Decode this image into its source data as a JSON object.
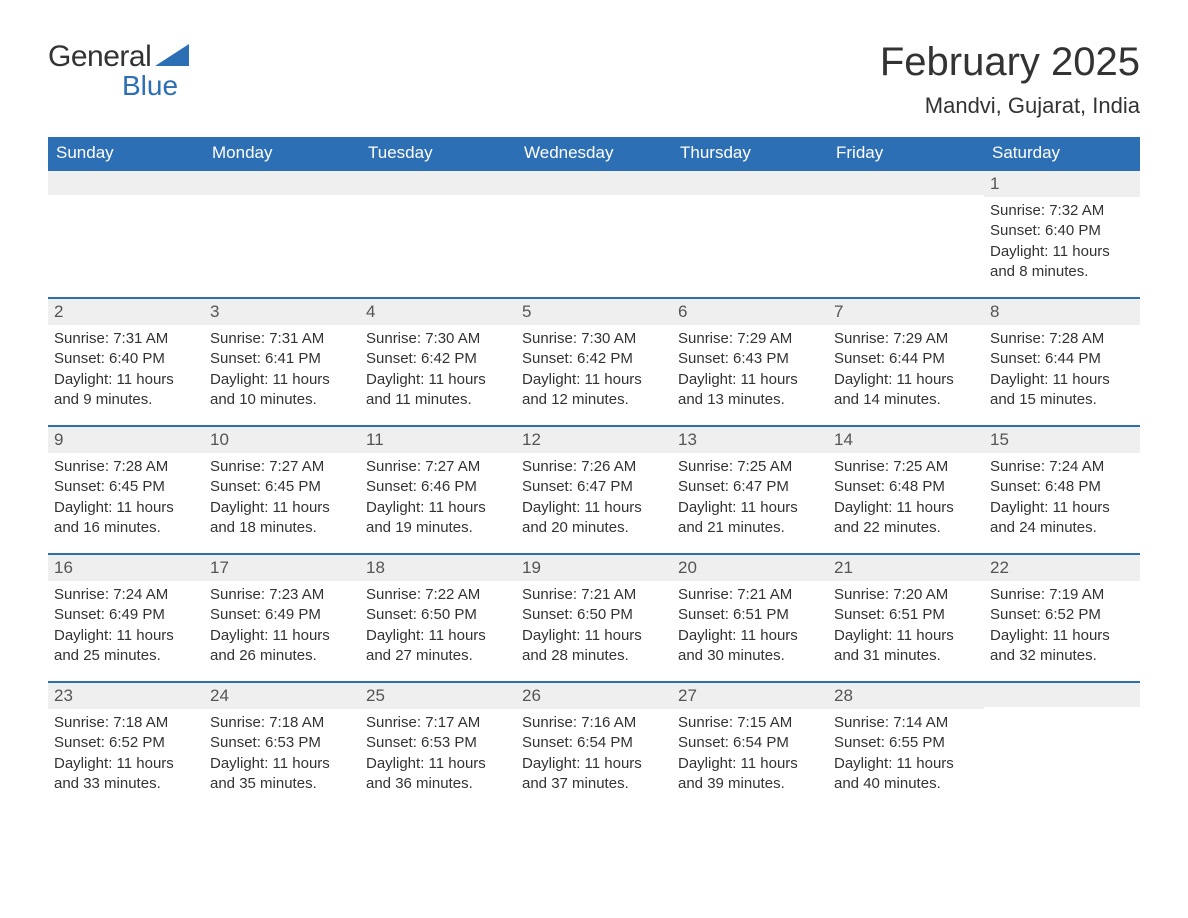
{
  "logo": {
    "text1": "General",
    "text2": "Blue",
    "icon_color": "#2d6fb5"
  },
  "title": "February 2025",
  "location": "Mandvi, Gujarat, India",
  "colors": {
    "header_bg": "#2d6fb5",
    "header_text": "#ffffff",
    "daynum_bg": "#efefef",
    "daynum_border": "#2d6fb5",
    "text": "#333333",
    "background": "#ffffff"
  },
  "fonts": {
    "title_size": 40,
    "location_size": 22,
    "dow_size": 17,
    "daynum_size": 17,
    "body_size": 15
  },
  "days_of_week": [
    "Sunday",
    "Monday",
    "Tuesday",
    "Wednesday",
    "Thursday",
    "Friday",
    "Saturday"
  ],
  "labels": {
    "sunrise": "Sunrise: ",
    "sunset": "Sunset: ",
    "daylight": "Daylight: "
  },
  "weeks": [
    [
      null,
      null,
      null,
      null,
      null,
      null,
      {
        "n": "1",
        "sr": "7:32 AM",
        "ss": "6:40 PM",
        "dl": "11 hours and 8 minutes."
      }
    ],
    [
      {
        "n": "2",
        "sr": "7:31 AM",
        "ss": "6:40 PM",
        "dl": "11 hours and 9 minutes."
      },
      {
        "n": "3",
        "sr": "7:31 AM",
        "ss": "6:41 PM",
        "dl": "11 hours and 10 minutes."
      },
      {
        "n": "4",
        "sr": "7:30 AM",
        "ss": "6:42 PM",
        "dl": "11 hours and 11 minutes."
      },
      {
        "n": "5",
        "sr": "7:30 AM",
        "ss": "6:42 PM",
        "dl": "11 hours and 12 minutes."
      },
      {
        "n": "6",
        "sr": "7:29 AM",
        "ss": "6:43 PM",
        "dl": "11 hours and 13 minutes."
      },
      {
        "n": "7",
        "sr": "7:29 AM",
        "ss": "6:44 PM",
        "dl": "11 hours and 14 minutes."
      },
      {
        "n": "8",
        "sr": "7:28 AM",
        "ss": "6:44 PM",
        "dl": "11 hours and 15 minutes."
      }
    ],
    [
      {
        "n": "9",
        "sr": "7:28 AM",
        "ss": "6:45 PM",
        "dl": "11 hours and 16 minutes."
      },
      {
        "n": "10",
        "sr": "7:27 AM",
        "ss": "6:45 PM",
        "dl": "11 hours and 18 minutes."
      },
      {
        "n": "11",
        "sr": "7:27 AM",
        "ss": "6:46 PM",
        "dl": "11 hours and 19 minutes."
      },
      {
        "n": "12",
        "sr": "7:26 AM",
        "ss": "6:47 PM",
        "dl": "11 hours and 20 minutes."
      },
      {
        "n": "13",
        "sr": "7:25 AM",
        "ss": "6:47 PM",
        "dl": "11 hours and 21 minutes."
      },
      {
        "n": "14",
        "sr": "7:25 AM",
        "ss": "6:48 PM",
        "dl": "11 hours and 22 minutes."
      },
      {
        "n": "15",
        "sr": "7:24 AM",
        "ss": "6:48 PM",
        "dl": "11 hours and 24 minutes."
      }
    ],
    [
      {
        "n": "16",
        "sr": "7:24 AM",
        "ss": "6:49 PM",
        "dl": "11 hours and 25 minutes."
      },
      {
        "n": "17",
        "sr": "7:23 AM",
        "ss": "6:49 PM",
        "dl": "11 hours and 26 minutes."
      },
      {
        "n": "18",
        "sr": "7:22 AM",
        "ss": "6:50 PM",
        "dl": "11 hours and 27 minutes."
      },
      {
        "n": "19",
        "sr": "7:21 AM",
        "ss": "6:50 PM",
        "dl": "11 hours and 28 minutes."
      },
      {
        "n": "20",
        "sr": "7:21 AM",
        "ss": "6:51 PM",
        "dl": "11 hours and 30 minutes."
      },
      {
        "n": "21",
        "sr": "7:20 AM",
        "ss": "6:51 PM",
        "dl": "11 hours and 31 minutes."
      },
      {
        "n": "22",
        "sr": "7:19 AM",
        "ss": "6:52 PM",
        "dl": "11 hours and 32 minutes."
      }
    ],
    [
      {
        "n": "23",
        "sr": "7:18 AM",
        "ss": "6:52 PM",
        "dl": "11 hours and 33 minutes."
      },
      {
        "n": "24",
        "sr": "7:18 AM",
        "ss": "6:53 PM",
        "dl": "11 hours and 35 minutes."
      },
      {
        "n": "25",
        "sr": "7:17 AM",
        "ss": "6:53 PM",
        "dl": "11 hours and 36 minutes."
      },
      {
        "n": "26",
        "sr": "7:16 AM",
        "ss": "6:54 PM",
        "dl": "11 hours and 37 minutes."
      },
      {
        "n": "27",
        "sr": "7:15 AM",
        "ss": "6:54 PM",
        "dl": "11 hours and 39 minutes."
      },
      {
        "n": "28",
        "sr": "7:14 AM",
        "ss": "6:55 PM",
        "dl": "11 hours and 40 minutes."
      },
      null
    ]
  ]
}
